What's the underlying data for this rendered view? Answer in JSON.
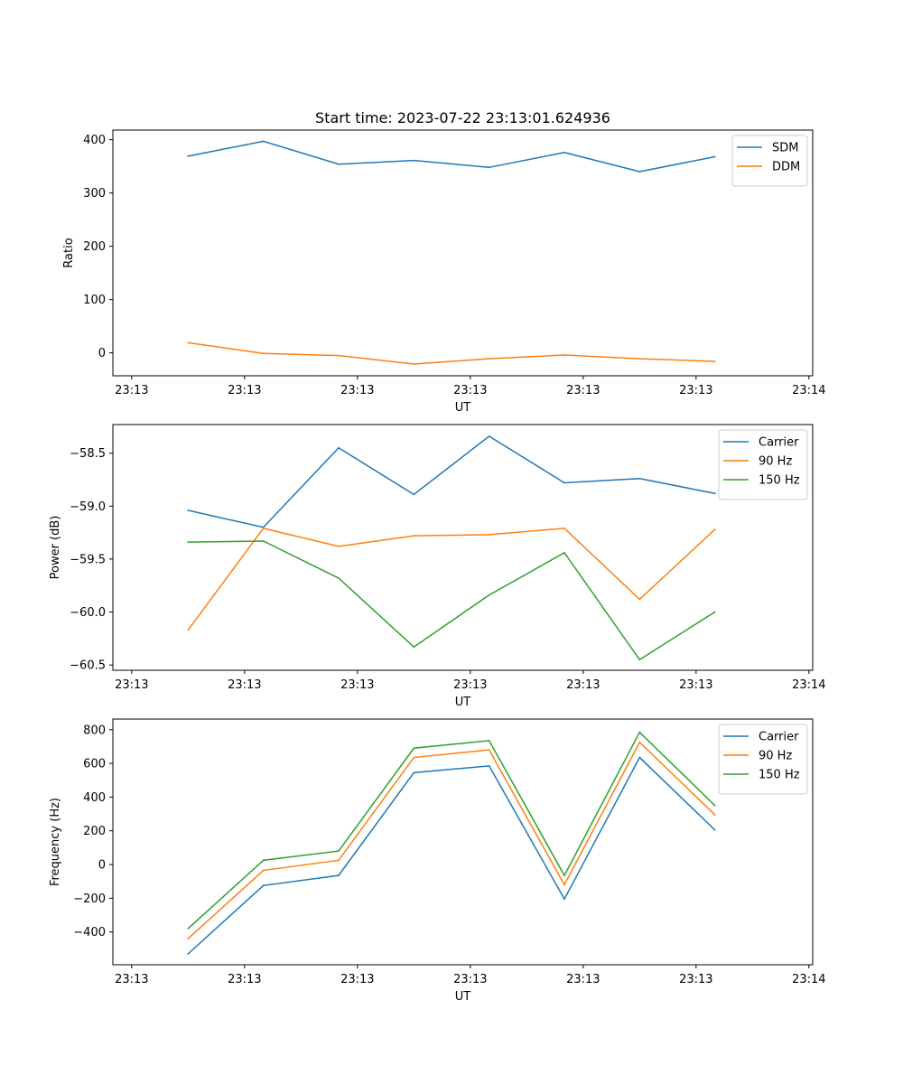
{
  "chart_data": [
    {
      "type": "line",
      "title": "Start time: 2023-07-22 23:13:01.624936",
      "xlabel": "UT",
      "ylabel": "Ratio",
      "x": [
        1,
        2,
        3,
        4,
        5,
        6,
        7,
        8
      ],
      "x_ticks": [
        0.25,
        1.75,
        3.25,
        4.75,
        6.25,
        7.75,
        9.25
      ],
      "x_tick_labels": [
        "23:13",
        "23:13",
        "23:13",
        "23:13",
        "23:13",
        "23:13",
        "23:14"
      ],
      "xlim": [
        0.0,
        9.3
      ],
      "ylim": [
        -43,
        418
      ],
      "y_ticks": [
        0,
        100,
        200,
        300,
        400
      ],
      "y_tick_labels": [
        "0",
        "100",
        "200",
        "300",
        "400"
      ],
      "legend": "top-right",
      "series": [
        {
          "name": "SDM",
          "color": "#1f77b4",
          "values": [
            369,
            397,
            354,
            361,
            348,
            376,
            340,
            368
          ]
        },
        {
          "name": "DDM",
          "color": "#ff7f0e",
          "values": [
            19,
            -1,
            -5,
            -21,
            -11,
            -4,
            -11,
            -16
          ]
        }
      ]
    },
    {
      "type": "line",
      "title": "",
      "xlabel": "UT",
      "ylabel": "Power (dB)",
      "x": [
        1,
        2,
        3,
        4,
        5,
        6,
        7,
        8
      ],
      "x_ticks": [
        0.25,
        1.75,
        3.25,
        4.75,
        6.25,
        7.75,
        9.25
      ],
      "x_tick_labels": [
        "23:13",
        "23:13",
        "23:13",
        "23:13",
        "23:13",
        "23:13",
        "23:14"
      ],
      "xlim": [
        0.0,
        9.3
      ],
      "ylim": [
        -60.55,
        -58.23
      ],
      "y_ticks": [
        -60.5,
        -60.0,
        -59.5,
        -59.0,
        -58.5
      ],
      "y_tick_labels": [
        "−60.5",
        "−60.0",
        "−59.5",
        "−59.0",
        "−58.5"
      ],
      "legend": "top-right",
      "series": [
        {
          "name": "Carrier",
          "color": "#1f77b4",
          "values": [
            -59.04,
            -59.2,
            -58.45,
            -58.89,
            -58.34,
            -58.78,
            -58.74,
            -58.88
          ]
        },
        {
          "name": "90 Hz",
          "color": "#ff7f0e",
          "values": [
            -60.17,
            -59.21,
            -59.38,
            -59.28,
            -59.27,
            -59.21,
            -59.88,
            -59.22
          ]
        },
        {
          "name": "150 Hz",
          "color": "#2ca02c",
          "values": [
            -59.34,
            -59.33,
            -59.68,
            -60.33,
            -59.84,
            -59.44,
            -60.45,
            -60.0
          ]
        }
      ]
    },
    {
      "type": "line",
      "title": "",
      "xlabel": "UT",
      "ylabel": "Frequency (Hz)",
      "x": [
        1,
        2,
        3,
        4,
        5,
        6,
        7,
        8
      ],
      "x_ticks": [
        0.25,
        1.75,
        3.25,
        4.75,
        6.25,
        7.75,
        9.25
      ],
      "x_tick_labels": [
        "23:13",
        "23:13",
        "23:13",
        "23:13",
        "23:13",
        "23:13",
        "23:14"
      ],
      "xlim": [
        0.0,
        9.3
      ],
      "ylim": [
        -595,
        863
      ],
      "y_ticks": [
        -400,
        -200,
        0,
        200,
        400,
        600,
        800
      ],
      "y_tick_labels": [
        "−400",
        "−200",
        "0",
        "200",
        "400",
        "600",
        "800"
      ],
      "legend": "top-right",
      "series": [
        {
          "name": "Carrier",
          "color": "#1f77b4",
          "values": [
            -530,
            -125,
            -65,
            545,
            585,
            -205,
            635,
            205
          ]
        },
        {
          "name": "90 Hz",
          "color": "#ff7f0e",
          "values": [
            -440,
            -35,
            25,
            635,
            680,
            -120,
            725,
            295
          ]
        },
        {
          "name": "150 Hz",
          "color": "#2ca02c",
          "values": [
            -380,
            25,
            80,
            690,
            735,
            -65,
            785,
            350
          ]
        }
      ]
    }
  ]
}
